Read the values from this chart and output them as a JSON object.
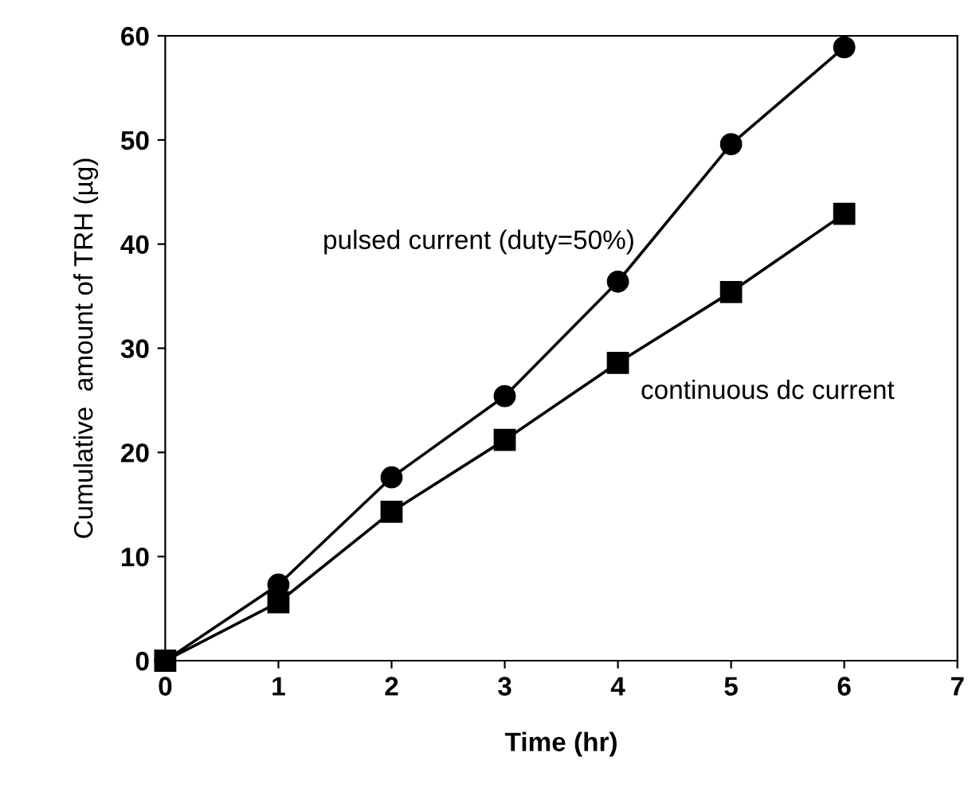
{
  "chart_data": {
    "type": "line",
    "xlabel": "Time (hr)",
    "ylabel": "Cumulative  amount of TRH (µg)",
    "x": [
      0,
      1,
      2,
      3,
      4,
      5,
      6
    ],
    "series": [
      {
        "name": "pulsed current (duty=50%)",
        "color": "#000000",
        "marker": "circle",
        "values": [
          0,
          7.3,
          17.6,
          25.4,
          36.4,
          49.6,
          58.9
        ]
      },
      {
        "name": "continuous dc current",
        "color": "#000000",
        "marker": "square",
        "values": [
          0,
          5.6,
          14.3,
          21.2,
          28.6,
          35.4,
          42.9
        ]
      }
    ],
    "xlim": [
      0,
      7
    ],
    "ylim": [
      0,
      60
    ],
    "xticks": [
      0,
      1,
      2,
      3,
      4,
      5,
      6,
      7
    ],
    "yticks": [
      0,
      10,
      20,
      30,
      40,
      50,
      60
    ],
    "grid": false,
    "legend": false,
    "line_style": "solid"
  }
}
